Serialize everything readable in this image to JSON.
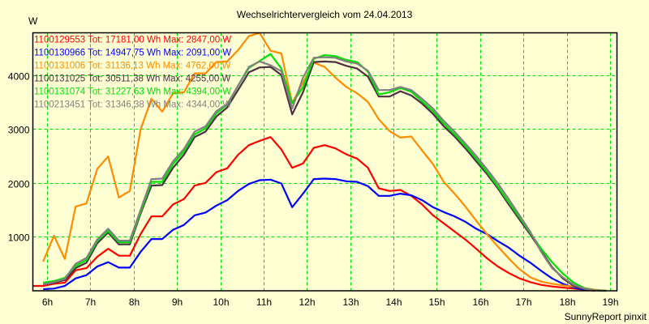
{
  "chart_data": {
    "type": "line",
    "title": "Wechselrichtervergleich vom 24.04.2013",
    "ylabel": "W",
    "xlabel": "",
    "footer": "SunnyReport pinxit",
    "xlim": [
      5.67,
      19.15
    ],
    "ylim": [
      0,
      4780
    ],
    "grid": true,
    "legend_position": "top-left",
    "x_ticks": [
      6,
      7,
      8,
      9,
      10,
      11,
      12,
      13,
      14,
      15,
      16,
      17,
      18,
      19
    ],
    "x_tick_labels": [
      "6h",
      "7h",
      "8h",
      "9h",
      "10h",
      "11h",
      "12h",
      "13h",
      "14h",
      "15h",
      "16h",
      "17h",
      "18h",
      "19h"
    ],
    "y_ticks": [
      1000,
      2000,
      3000,
      4000
    ],
    "y_tick_labels": [
      "1000",
      "2000",
      "3000",
      "4000"
    ],
    "series": [
      {
        "name": "1100129553",
        "legend": "1100129553 Tot: 17181,00 Wh Max: 2847,00 W",
        "color": "#ff0000",
        "x": [
          5.67,
          5.91,
          6.16,
          6.41,
          6.66,
          6.91,
          7.16,
          7.41,
          7.66,
          7.91,
          8.16,
          8.41,
          8.66,
          8.91,
          9.16,
          9.41,
          9.66,
          9.91,
          10.16,
          10.41,
          10.66,
          10.91,
          11.16,
          11.41,
          11.66,
          11.91,
          12.16,
          12.41,
          12.66,
          12.91,
          13.16,
          13.41,
          13.66,
          13.91,
          14.16,
          14.41,
          14.66,
          14.91,
          15.16,
          15.41,
          15.66,
          15.91,
          16.16,
          16.41,
          16.66,
          16.91,
          17.16,
          17.41,
          17.66,
          17.91,
          18.16,
          18.41,
          18.66
        ],
        "y": [
          90,
          90,
          130,
          150,
          380,
          420,
          630,
          780,
          650,
          650,
          1050,
          1380,
          1380,
          1600,
          1700,
          1950,
          2000,
          2200,
          2270,
          2520,
          2700,
          2780,
          2850,
          2620,
          2280,
          2360,
          2650,
          2700,
          2640,
          2530,
          2450,
          2280,
          1900,
          1850,
          1870,
          1760,
          1600,
          1400,
          1250,
          1100,
          950,
          780,
          600,
          450,
          330,
          230,
          160,
          110,
          80,
          60,
          40,
          20,
          0
        ]
      },
      {
        "name": "1100130966",
        "legend": "1100130966 Tot: 14947,75 Wh Max: 2091,00 W",
        "color": "#0000ff",
        "x": [
          5.91,
          6.16,
          6.41,
          6.66,
          6.91,
          7.16,
          7.41,
          7.66,
          7.91,
          8.16,
          8.41,
          8.66,
          8.91,
          9.16,
          9.41,
          9.66,
          9.91,
          10.16,
          10.41,
          10.66,
          10.91,
          11.16,
          11.41,
          11.66,
          11.91,
          12.16,
          12.41,
          12.66,
          12.91,
          13.16,
          13.41,
          13.66,
          13.91,
          14.16,
          14.41,
          14.66,
          14.91,
          15.16,
          15.41,
          15.66,
          15.91,
          16.16,
          16.41,
          16.66,
          16.91,
          17.16,
          17.41,
          17.66,
          17.91,
          18.16,
          18.41,
          18.66,
          18.91
        ],
        "y": [
          30,
          40,
          90,
          230,
          290,
          450,
          530,
          430,
          430,
          720,
          960,
          960,
          1130,
          1220,
          1400,
          1450,
          1580,
          1680,
          1850,
          1980,
          2050,
          2060,
          1990,
          1550,
          1800,
          2070,
          2080,
          2070,
          2030,
          2020,
          1940,
          1760,
          1760,
          1800,
          1770,
          1680,
          1550,
          1460,
          1380,
          1280,
          1150,
          1050,
          920,
          800,
          650,
          520,
          370,
          230,
          130,
          60,
          20,
          10,
          0
        ]
      },
      {
        "name": "1100131006",
        "legend": "1100131006 Tot: 31136,13 Wh Max: 4762,00 W",
        "color": "#ff8c00",
        "x": [
          5.91,
          6.16,
          6.41,
          6.66,
          6.91,
          7.16,
          7.41,
          7.66,
          7.91,
          8.16,
          8.41,
          8.66,
          8.91,
          9.16,
          9.41,
          9.66,
          9.91,
          10.16,
          10.41,
          10.66,
          10.91,
          11.16,
          11.41,
          11.66,
          11.91,
          12.16,
          12.41,
          12.66,
          12.91,
          13.16,
          13.41,
          13.66,
          13.91,
          14.16,
          14.41,
          14.66,
          14.91,
          15.16,
          15.41,
          15.66,
          15.91,
          16.16,
          16.41,
          16.66,
          16.91,
          17.16,
          17.41,
          17.66,
          17.91,
          18.16,
          18.41,
          18.66,
          18.91
        ],
        "y": [
          540,
          1020,
          590,
          1560,
          1620,
          2260,
          2490,
          1730,
          1850,
          2990,
          3560,
          3320,
          3660,
          3680,
          4030,
          4030,
          4240,
          4250,
          4460,
          4720,
          4780,
          4450,
          4400,
          3480,
          3860,
          4230,
          4150,
          3950,
          3780,
          3660,
          3500,
          3180,
          2960,
          2840,
          2860,
          2600,
          2350,
          2020,
          1800,
          1560,
          1300,
          1050,
          820,
          600,
          400,
          250,
          170,
          130,
          100,
          80,
          50,
          20,
          0
        ]
      },
      {
        "name": "1100131025",
        "legend": "1100131025 Tot: 30511,38 Wh Max: 4255,00 W",
        "color": "#4b3040",
        "x": [
          5.91,
          6.16,
          6.41,
          6.66,
          6.91,
          7.16,
          7.41,
          7.66,
          7.91,
          8.16,
          8.41,
          8.66,
          8.91,
          9.16,
          9.41,
          9.66,
          9.91,
          10.16,
          10.41,
          10.66,
          10.91,
          11.16,
          11.41,
          11.66,
          11.91,
          12.16,
          12.41,
          12.66,
          12.91,
          13.16,
          13.41,
          13.66,
          13.91,
          14.16,
          14.41,
          14.66,
          14.91,
          15.16,
          15.41,
          15.66,
          15.91,
          16.16,
          16.41,
          16.66,
          16.91,
          17.16,
          17.41,
          17.66,
          17.91,
          18.16,
          18.41,
          18.66,
          18.91
        ],
        "y": [
          120,
          150,
          200,
          420,
          520,
          880,
          1080,
          860,
          860,
          1430,
          1950,
          1960,
          2280,
          2520,
          2850,
          2950,
          3230,
          3400,
          3720,
          4050,
          4140,
          4150,
          4000,
          3270,
          3680,
          4240,
          4250,
          4240,
          4170,
          4120,
          3970,
          3600,
          3600,
          3700,
          3620,
          3470,
          3280,
          3050,
          2860,
          2640,
          2400,
          2160,
          1900,
          1600,
          1320,
          1040,
          740,
          440,
          230,
          90,
          30,
          10,
          0
        ]
      },
      {
        "name": "1100131074",
        "legend": "1100131074 Tot: 31227,63 Wh Max: 4394,00 W",
        "color": "#00e000",
        "x": [
          5.91,
          6.16,
          6.41,
          6.66,
          6.91,
          7.16,
          7.41,
          7.66,
          7.91,
          8.16,
          8.41,
          8.66,
          8.91,
          9.16,
          9.41,
          9.66,
          9.91,
          10.16,
          10.41,
          10.66,
          10.91,
          11.16,
          11.41,
          11.66,
          11.91,
          12.16,
          12.41,
          12.66,
          12.91,
          13.16,
          13.41,
          13.66,
          13.91,
          14.16,
          14.41,
          14.66,
          14.91,
          15.16,
          15.41,
          15.66,
          15.91,
          16.16,
          16.41,
          16.66,
          16.91,
          17.16,
          17.41,
          17.66,
          17.91,
          18.16,
          18.41,
          18.66,
          18.91
        ],
        "y": [
          150,
          180,
          240,
          460,
          570,
          920,
          1110,
          900,
          900,
          1460,
          2020,
          2020,
          2350,
          2580,
          2900,
          3010,
          3290,
          3450,
          3800,
          4130,
          4260,
          4390,
          4120,
          3480,
          3770,
          4300,
          4370,
          4350,
          4280,
          4240,
          4060,
          3640,
          3680,
          3760,
          3690,
          3510,
          3330,
          3100,
          2900,
          2680,
          2450,
          2200,
          1930,
          1640,
          1360,
          1070,
          780,
          530,
          320,
          150,
          50,
          10,
          0
        ]
      },
      {
        "name": "1100213451",
        "legend": "1100213451 Tot: 31346,38 Wh Max: 4344,00 W",
        "color": "#808080",
        "x": [
          5.91,
          6.16,
          6.41,
          6.66,
          6.91,
          7.16,
          7.41,
          7.66,
          7.91,
          8.16,
          8.41,
          8.66,
          8.91,
          9.16,
          9.41,
          9.66,
          9.91,
          10.16,
          10.41,
          10.66,
          10.91,
          11.16,
          11.41,
          11.66,
          11.91,
          12.16,
          12.41,
          12.66,
          12.91,
          13.16,
          13.41,
          13.66,
          13.91,
          14.16,
          14.41,
          14.66,
          14.91,
          15.16,
          15.41,
          15.66,
          15.91,
          16.16,
          16.41,
          16.66,
          16.91,
          17.16,
          17.41,
          17.66,
          17.91,
          18.16,
          18.41,
          18.66,
          18.91
        ],
        "y": [
          120,
          160,
          220,
          500,
          610,
          950,
          1150,
          930,
          930,
          1500,
          2070,
          2080,
          2400,
          2630,
          2950,
          3050,
          3330,
          3460,
          3800,
          4150,
          4250,
          4180,
          4070,
          3380,
          3950,
          4320,
          4330,
          4320,
          4250,
          4210,
          4080,
          3720,
          3720,
          3780,
          3720,
          3560,
          3380,
          3150,
          2950,
          2730,
          2500,
          2250,
          1990,
          1700,
          1400,
          1090,
          720,
          420,
          250,
          110,
          40,
          10,
          0
        ]
      }
    ]
  }
}
